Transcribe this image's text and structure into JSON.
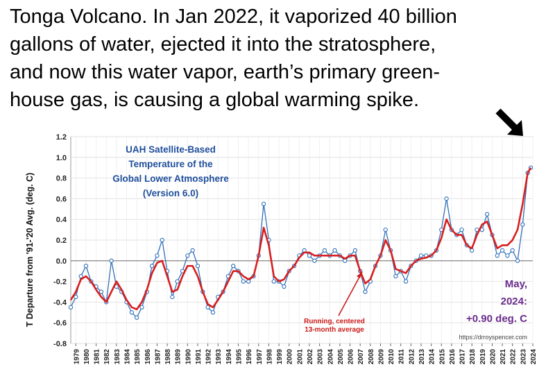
{
  "caption": {
    "lines": [
      "Tonga Volcano.  In Jan 2022, it vaporized 40 billion",
      "gallons of water, ejected it into the stratosphere,",
      "and now this water vapor, earth’s primary green-",
      "house gas, is causing a global warming spike."
    ]
  },
  "chart_data": {
    "type": "line",
    "title_lines": [
      "UAH Satellite-Based",
      "Temperature of the",
      "Global Lower Atmosphere",
      "(Version 6.0)"
    ],
    "ylabel": "T Departure from '91-'20 Avg. (deg. C)",
    "ylim": [
      -0.8,
      1.2
    ],
    "yticks": [
      "-0.8",
      "-0.6",
      "-0.4",
      "-0.2",
      "0.0",
      "0.2",
      "0.4",
      "0.6",
      "0.8",
      "1.0",
      "1.2"
    ],
    "xticks": [
      "1979",
      "1980",
      "1981",
      "1982",
      "1983",
      "1984",
      "1985",
      "1986",
      "1987",
      "1988",
      "1989",
      "1990",
      "1991",
      "1992",
      "1993",
      "1994",
      "1995",
      "1996",
      "1997",
      "1998",
      "1999",
      "2000",
      "2001",
      "2002",
      "2003",
      "2004",
      "2005",
      "2006",
      "2007",
      "2008",
      "2009",
      "2010",
      "2011",
      "2012",
      "2013",
      "2014",
      "2015",
      "2016",
      "2017",
      "2018",
      "2019",
      "2020",
      "2021",
      "2022",
      "2023",
      "2024"
    ],
    "xlim": [
      1979.0,
      2024.5
    ],
    "grid": true,
    "series": [
      {
        "role": "monthly",
        "color": "#2e6fb8",
        "x": [
          1979.0,
          1979.5,
          1980.0,
          1980.5,
          1981.0,
          1981.5,
          1982.0,
          1982.5,
          1983.0,
          1983.5,
          1984.0,
          1984.5,
          1985.0,
          1985.5,
          1986.0,
          1986.5,
          1987.0,
          1987.5,
          1988.0,
          1988.5,
          1989.0,
          1989.5,
          1990.0,
          1990.5,
          1991.0,
          1991.5,
          1992.0,
          1992.5,
          1993.0,
          1993.5,
          1994.0,
          1994.5,
          1995.0,
          1995.5,
          1996.0,
          1996.5,
          1997.0,
          1997.5,
          1998.0,
          1998.5,
          1999.0,
          1999.5,
          2000.0,
          2000.5,
          2001.0,
          2001.5,
          2002.0,
          2002.5,
          2003.0,
          2003.5,
          2004.0,
          2004.5,
          2005.0,
          2005.5,
          2006.0,
          2006.5,
          2007.0,
          2007.5,
          2008.0,
          2008.5,
          2009.0,
          2009.5,
          2010.0,
          2010.5,
          2011.0,
          2011.5,
          2012.0,
          2012.5,
          2013.0,
          2013.5,
          2014.0,
          2014.5,
          2015.0,
          2015.5,
          2016.0,
          2016.5,
          2017.0,
          2017.5,
          2018.0,
          2018.5,
          2019.0,
          2019.5,
          2020.0,
          2020.5,
          2021.0,
          2021.5,
          2022.0,
          2022.5,
          2023.0,
          2023.5,
          2024.0,
          2024.3
        ],
        "values": [
          -0.45,
          -0.35,
          -0.15,
          -0.05,
          -0.2,
          -0.25,
          -0.3,
          -0.4,
          0.0,
          -0.25,
          -0.3,
          -0.4,
          -0.5,
          -0.55,
          -0.45,
          -0.3,
          -0.05,
          0.05,
          0.2,
          -0.1,
          -0.35,
          -0.2,
          -0.1,
          0.05,
          0.1,
          -0.05,
          -0.3,
          -0.45,
          -0.5,
          -0.35,
          -0.3,
          -0.15,
          -0.05,
          -0.1,
          -0.2,
          -0.2,
          -0.15,
          0.05,
          0.55,
          0.2,
          -0.2,
          -0.2,
          -0.25,
          -0.1,
          -0.05,
          0.05,
          0.1,
          0.05,
          0.0,
          0.05,
          0.1,
          0.05,
          0.1,
          0.05,
          0.0,
          0.05,
          0.1,
          -0.1,
          -0.3,
          -0.2,
          -0.05,
          0.05,
          0.3,
          0.1,
          -0.15,
          -0.1,
          -0.2,
          -0.05,
          0.0,
          0.05,
          0.05,
          0.05,
          0.1,
          0.3,
          0.6,
          0.3,
          0.25,
          0.3,
          0.15,
          0.1,
          0.3,
          0.3,
          0.45,
          0.25,
          0.05,
          0.1,
          0.05,
          0.1,
          0.0,
          0.35,
          0.85,
          0.9
        ]
      },
      {
        "role": "average",
        "color": "#d81e1e",
        "x": [
          1979.0,
          1979.5,
          1980.0,
          1980.5,
          1981.0,
          1981.5,
          1982.0,
          1982.5,
          1983.0,
          1983.5,
          1984.0,
          1984.5,
          1985.0,
          1985.5,
          1986.0,
          1986.5,
          1987.0,
          1987.5,
          1988.0,
          1988.5,
          1989.0,
          1989.5,
          1990.0,
          1990.5,
          1991.0,
          1991.5,
          1992.0,
          1992.5,
          1993.0,
          1993.5,
          1994.0,
          1994.5,
          1995.0,
          1995.5,
          1996.0,
          1996.5,
          1997.0,
          1997.5,
          1998.0,
          1998.5,
          1999.0,
          1999.5,
          2000.0,
          2000.5,
          2001.0,
          2001.5,
          2002.0,
          2002.5,
          2003.0,
          2003.5,
          2004.0,
          2004.5,
          2005.0,
          2005.5,
          2006.0,
          2006.5,
          2007.0,
          2007.5,
          2008.0,
          2008.5,
          2009.0,
          2009.5,
          2010.0,
          2010.5,
          2011.0,
          2011.5,
          2012.0,
          2012.5,
          2013.0,
          2013.5,
          2014.0,
          2014.5,
          2015.0,
          2015.5,
          2016.0,
          2016.5,
          2017.0,
          2017.5,
          2018.0,
          2018.5,
          2019.0,
          2019.5,
          2020.0,
          2020.5,
          2021.0,
          2021.5,
          2022.0,
          2022.5,
          2023.0,
          2023.5,
          2024.0,
          2024.3
        ],
        "values": [
          -0.38,
          -0.3,
          -0.18,
          -0.15,
          -0.2,
          -0.28,
          -0.35,
          -0.4,
          -0.3,
          -0.2,
          -0.28,
          -0.38,
          -0.45,
          -0.47,
          -0.4,
          -0.28,
          -0.12,
          -0.02,
          0.0,
          -0.15,
          -0.3,
          -0.28,
          -0.15,
          -0.05,
          -0.05,
          -0.15,
          -0.3,
          -0.42,
          -0.45,
          -0.38,
          -0.3,
          -0.2,
          -0.1,
          -0.1,
          -0.15,
          -0.18,
          -0.15,
          0.05,
          0.32,
          0.15,
          -0.15,
          -0.2,
          -0.18,
          -0.1,
          -0.05,
          0.03,
          0.08,
          0.08,
          0.05,
          0.05,
          0.05,
          0.05,
          0.05,
          0.05,
          0.02,
          0.05,
          0.05,
          -0.1,
          -0.22,
          -0.18,
          -0.05,
          0.05,
          0.2,
          0.1,
          -0.08,
          -0.1,
          -0.12,
          -0.05,
          0.0,
          0.02,
          0.03,
          0.05,
          0.1,
          0.22,
          0.4,
          0.3,
          0.25,
          0.25,
          0.15,
          0.12,
          0.25,
          0.35,
          0.38,
          0.25,
          0.12,
          0.15,
          0.15,
          0.2,
          0.3,
          0.55,
          0.85,
          0.9
        ]
      }
    ],
    "annotations": {
      "red_label": [
        "Running, centered",
        "13-month average"
      ],
      "latest_lines": [
        "May,",
        "2024:",
        "+0.90 deg. C"
      ],
      "url": "https://drroyspencer.com"
    }
  }
}
